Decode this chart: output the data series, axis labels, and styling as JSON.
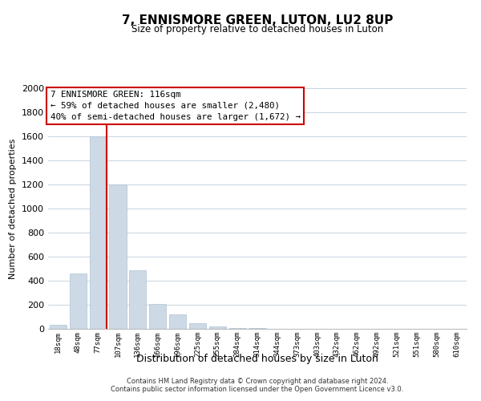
{
  "title": "7, ENNISMORE GREEN, LUTON, LU2 8UP",
  "subtitle": "Size of property relative to detached houses in Luton",
  "xlabel": "Distribution of detached houses by size in Luton",
  "ylabel": "Number of detached properties",
  "bar_color": "#cdd9e5",
  "bar_edge_color": "#aec4d5",
  "categories": [
    "18sqm",
    "48sqm",
    "77sqm",
    "107sqm",
    "136sqm",
    "166sqm",
    "196sqm",
    "225sqm",
    "255sqm",
    "284sqm",
    "314sqm",
    "344sqm",
    "373sqm",
    "403sqm",
    "432sqm",
    "462sqm",
    "492sqm",
    "521sqm",
    "551sqm",
    "580sqm",
    "610sqm"
  ],
  "values": [
    35,
    460,
    1600,
    1200,
    490,
    210,
    120,
    45,
    20,
    10,
    5,
    0,
    0,
    0,
    0,
    0,
    0,
    0,
    0,
    0,
    0
  ],
  "ylim": [
    0,
    2000
  ],
  "yticks": [
    0,
    200,
    400,
    600,
    800,
    1000,
    1200,
    1400,
    1600,
    1800,
    2000
  ],
  "property_line_color": "#cc0000",
  "annotation_title": "7 ENNISMORE GREEN: 116sqm",
  "annotation_line1": "← 59% of detached houses are smaller (2,480)",
  "annotation_line2": "40% of semi-detached houses are larger (1,672) →",
  "annotation_box_color": "#ffffff",
  "annotation_box_edge_color": "#cc0000",
  "footer_line1": "Contains HM Land Registry data © Crown copyright and database right 2024.",
  "footer_line2": "Contains public sector information licensed under the Open Government Licence v3.0.",
  "background_color": "#ffffff",
  "grid_color": "#c8d4de"
}
